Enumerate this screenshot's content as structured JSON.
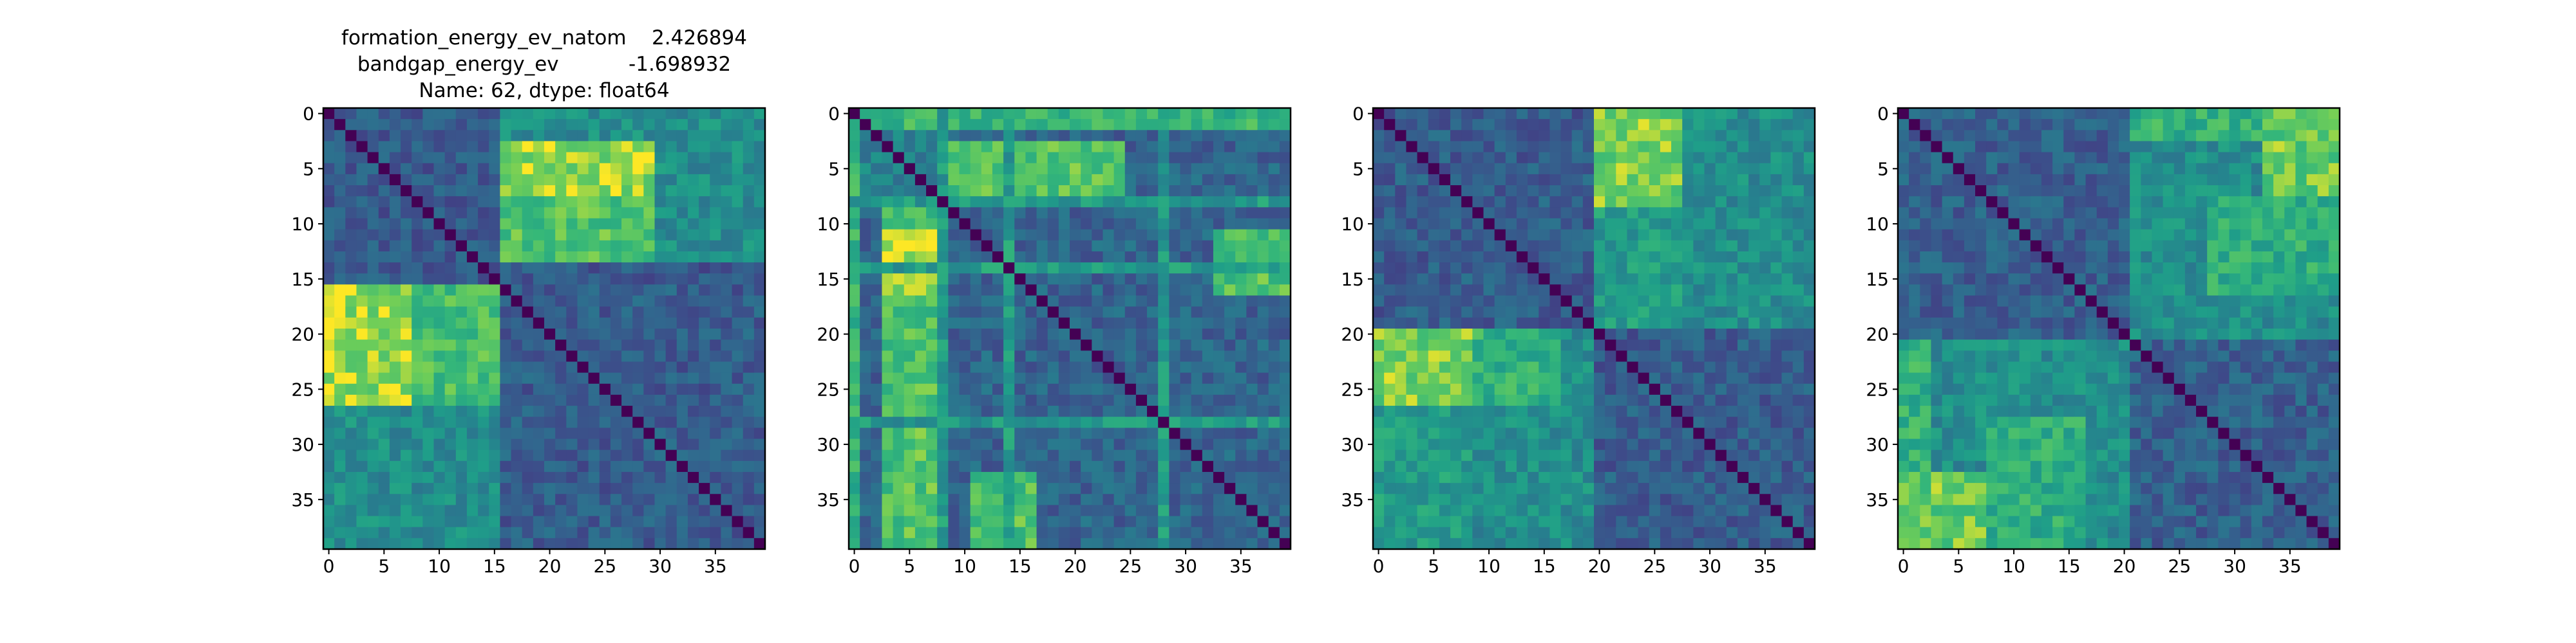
{
  "chart_data": [
    {
      "type": "heatmap",
      "title_lines": [
        "formation_energy_ev_natom    2.426894",
        "bandgap_energy_ev           -1.698932",
        "Name: 62, dtype: float64"
      ],
      "size": 40,
      "x_ticks": [
        0,
        5,
        10,
        15,
        20,
        25,
        30,
        35
      ],
      "y_ticks": [
        0,
        5,
        10,
        15,
        20,
        25,
        30,
        35
      ],
      "colormap": "viridis",
      "blocks": [
        {
          "r": [
            0,
            16
          ],
          "c": [
            0,
            16
          ],
          "v": 0.32
        },
        {
          "r": [
            16,
            40
          ],
          "c": [
            16,
            40
          ],
          "v": 0.33
        },
        {
          "r": [
            0,
            3
          ],
          "c": [
            16,
            40
          ],
          "v": 0.55
        },
        {
          "r": [
            3,
            8
          ],
          "c": [
            16,
            30
          ],
          "v": 0.92
        },
        {
          "r": [
            8,
            14
          ],
          "c": [
            16,
            30
          ],
          "v": 0.8
        },
        {
          "r": [
            3,
            14
          ],
          "c": [
            30,
            40
          ],
          "v": 0.55
        },
        {
          "r": [
            16,
            40
          ],
          "c": [
            0,
            3
          ],
          "v": 0.6
        },
        {
          "r": [
            16,
            27
          ],
          "c": [
            0,
            8
          ],
          "v": 0.92
        },
        {
          "r": [
            16,
            27
          ],
          "c": [
            8,
            16
          ],
          "v": 0.78
        },
        {
          "r": [
            27,
            40
          ],
          "c": [
            0,
            16
          ],
          "v": 0.55
        }
      ]
    },
    {
      "type": "heatmap",
      "title_lines": [],
      "size": 40,
      "x_ticks": [
        0,
        5,
        10,
        15,
        20,
        25,
        30,
        35
      ],
      "y_ticks": [
        0,
        5,
        10,
        15,
        20,
        25,
        30,
        35
      ],
      "colormap": "viridis",
      "blocks": [
        {
          "r": [
            0,
            40
          ],
          "c": [
            0,
            40
          ],
          "v": 0.36
        },
        {
          "r": [
            0,
            9
          ],
          "c": [
            0,
            9
          ],
          "v": 0.5
        },
        {
          "r": [
            0,
            2
          ],
          "c": [
            0,
            40
          ],
          "v": 0.75
        },
        {
          "r": [
            3,
            9
          ],
          "c": [
            9,
            25
          ],
          "v": 0.82
        },
        {
          "r": [
            9,
            40
          ],
          "c": [
            3,
            9
          ],
          "v": 0.8
        },
        {
          "r": [
            11,
            17
          ],
          "c": [
            3,
            9
          ],
          "v": 0.95
        },
        {
          "r": [
            11,
            17
          ],
          "c": [
            33,
            40
          ],
          "v": 0.8
        },
        {
          "r": [
            33,
            40
          ],
          "c": [
            11,
            17
          ],
          "v": 0.8
        },
        {
          "r": [
            0,
            40
          ],
          "c": [
            0,
            1
          ],
          "v": 0.72
        },
        {
          "r": [
            0,
            1
          ],
          "c": [
            0,
            40
          ],
          "v": 0.72
        },
        {
          "r": [
            8,
            9
          ],
          "c": [
            0,
            40
          ],
          "v": 0.62
        },
        {
          "r": [
            0,
            40
          ],
          "c": [
            8,
            9
          ],
          "v": 0.62
        },
        {
          "r": [
            14,
            15
          ],
          "c": [
            0,
            40
          ],
          "v": 0.62
        },
        {
          "r": [
            0,
            40
          ],
          "c": [
            14,
            15
          ],
          "v": 0.62
        },
        {
          "r": [
            28,
            29
          ],
          "c": [
            0,
            40
          ],
          "v": 0.6
        },
        {
          "r": [
            0,
            40
          ],
          "c": [
            28,
            29
          ],
          "v": 0.6
        }
      ]
    },
    {
      "type": "heatmap",
      "title_lines": [],
      "size": 40,
      "x_ticks": [
        0,
        5,
        10,
        15,
        20,
        25,
        30,
        35
      ],
      "y_ticks": [
        0,
        5,
        10,
        15,
        20,
        25,
        30,
        35
      ],
      "colormap": "viridis",
      "blocks": [
        {
          "r": [
            0,
            20
          ],
          "c": [
            0,
            20
          ],
          "v": 0.33
        },
        {
          "r": [
            20,
            40
          ],
          "c": [
            20,
            40
          ],
          "v": 0.33
        },
        {
          "r": [
            0,
            9
          ],
          "c": [
            20,
            28
          ],
          "v": 0.88
        },
        {
          "r": [
            9,
            20
          ],
          "c": [
            20,
            28
          ],
          "v": 0.62
        },
        {
          "r": [
            0,
            20
          ],
          "c": [
            28,
            40
          ],
          "v": 0.55
        },
        {
          "r": [
            20,
            27
          ],
          "c": [
            0,
            9
          ],
          "v": 0.88
        },
        {
          "r": [
            27,
            40
          ],
          "c": [
            0,
            9
          ],
          "v": 0.62
        },
        {
          "r": [
            20,
            40
          ],
          "c": [
            9,
            20
          ],
          "v": 0.55
        },
        {
          "r": [
            20,
            27
          ],
          "c": [
            9,
            17
          ],
          "v": 0.72
        }
      ]
    },
    {
      "type": "heatmap",
      "title_lines": [],
      "size": 40,
      "x_ticks": [
        0,
        5,
        10,
        15,
        20,
        25,
        30,
        35
      ],
      "y_ticks": [
        0,
        5,
        10,
        15,
        20,
        25,
        30,
        35
      ],
      "colormap": "viridis",
      "blocks": [
        {
          "r": [
            0,
            40
          ],
          "c": [
            0,
            40
          ],
          "v": 0.34
        },
        {
          "r": [
            0,
            21
          ],
          "c": [
            21,
            40
          ],
          "v": 0.55
        },
        {
          "r": [
            0,
            3
          ],
          "c": [
            21,
            40
          ],
          "v": 0.72
        },
        {
          "r": [
            0,
            8
          ],
          "c": [
            33,
            40
          ],
          "v": 0.85
        },
        {
          "r": [
            8,
            17
          ],
          "c": [
            28,
            40
          ],
          "v": 0.7
        },
        {
          "r": [
            21,
            40
          ],
          "c": [
            0,
            21
          ],
          "v": 0.55
        },
        {
          "r": [
            21,
            40
          ],
          "c": [
            0,
            3
          ],
          "v": 0.72
        },
        {
          "r": [
            33,
            40
          ],
          "c": [
            0,
            8
          ],
          "v": 0.85
        },
        {
          "r": [
            28,
            40
          ],
          "c": [
            8,
            17
          ],
          "v": 0.7
        }
      ]
    }
  ]
}
